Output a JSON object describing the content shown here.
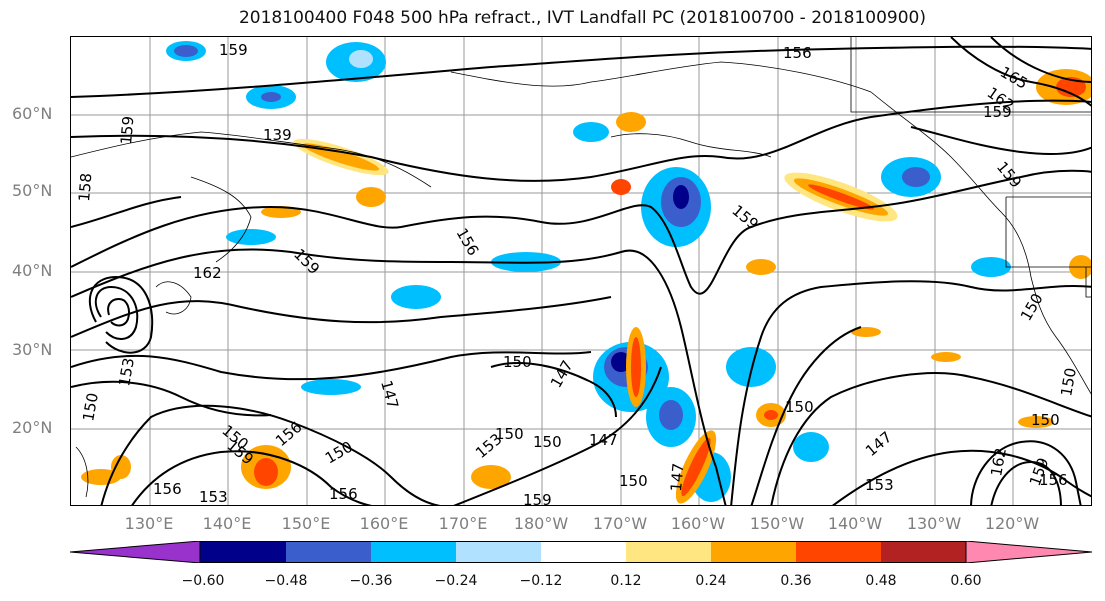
{
  "title": "2018100400 F048 500 hPa refract., IVT Landfall PC (2018100700 - 2018100900)",
  "lat_labels": [
    "60°N",
    "50°N",
    "40°N",
    "30°N",
    "20°N"
  ],
  "lon_labels": [
    "130°E",
    "140°E",
    "150°E",
    "160°E",
    "170°E",
    "180°W",
    "170°W",
    "160°W",
    "150°W",
    "140°W",
    "130°W",
    "120°W"
  ],
  "colorbar": {
    "tick_labels": [
      "−0.60",
      "−0.48",
      "−0.36",
      "−0.24",
      "−0.12",
      "0.12",
      "0.24",
      "0.36",
      "0.48",
      "0.60"
    ],
    "colors": [
      "#9932cc",
      "#00008b",
      "#3a5fcd",
      "#00bfff",
      "#b0e2ff",
      "#ffffff",
      "#ffe680",
      "#ffa500",
      "#ff4500",
      "#b22222",
      "#ff88b0"
    ]
  },
  "contour_labels": [
    "159",
    "156",
    "159",
    "165",
    "162",
    "159",
    "159",
    "158",
    "159",
    "139",
    "162",
    "156",
    "159",
    "150",
    "150",
    "153",
    "150",
    "147",
    "147",
    "150",
    "150",
    "150",
    "147",
    "147",
    "150",
    "150",
    "150",
    "153",
    "156",
    "156",
    "153",
    "156",
    "159",
    "150",
    "153",
    "147",
    "162",
    "159",
    "156",
    "150",
    "159"
  ]
}
